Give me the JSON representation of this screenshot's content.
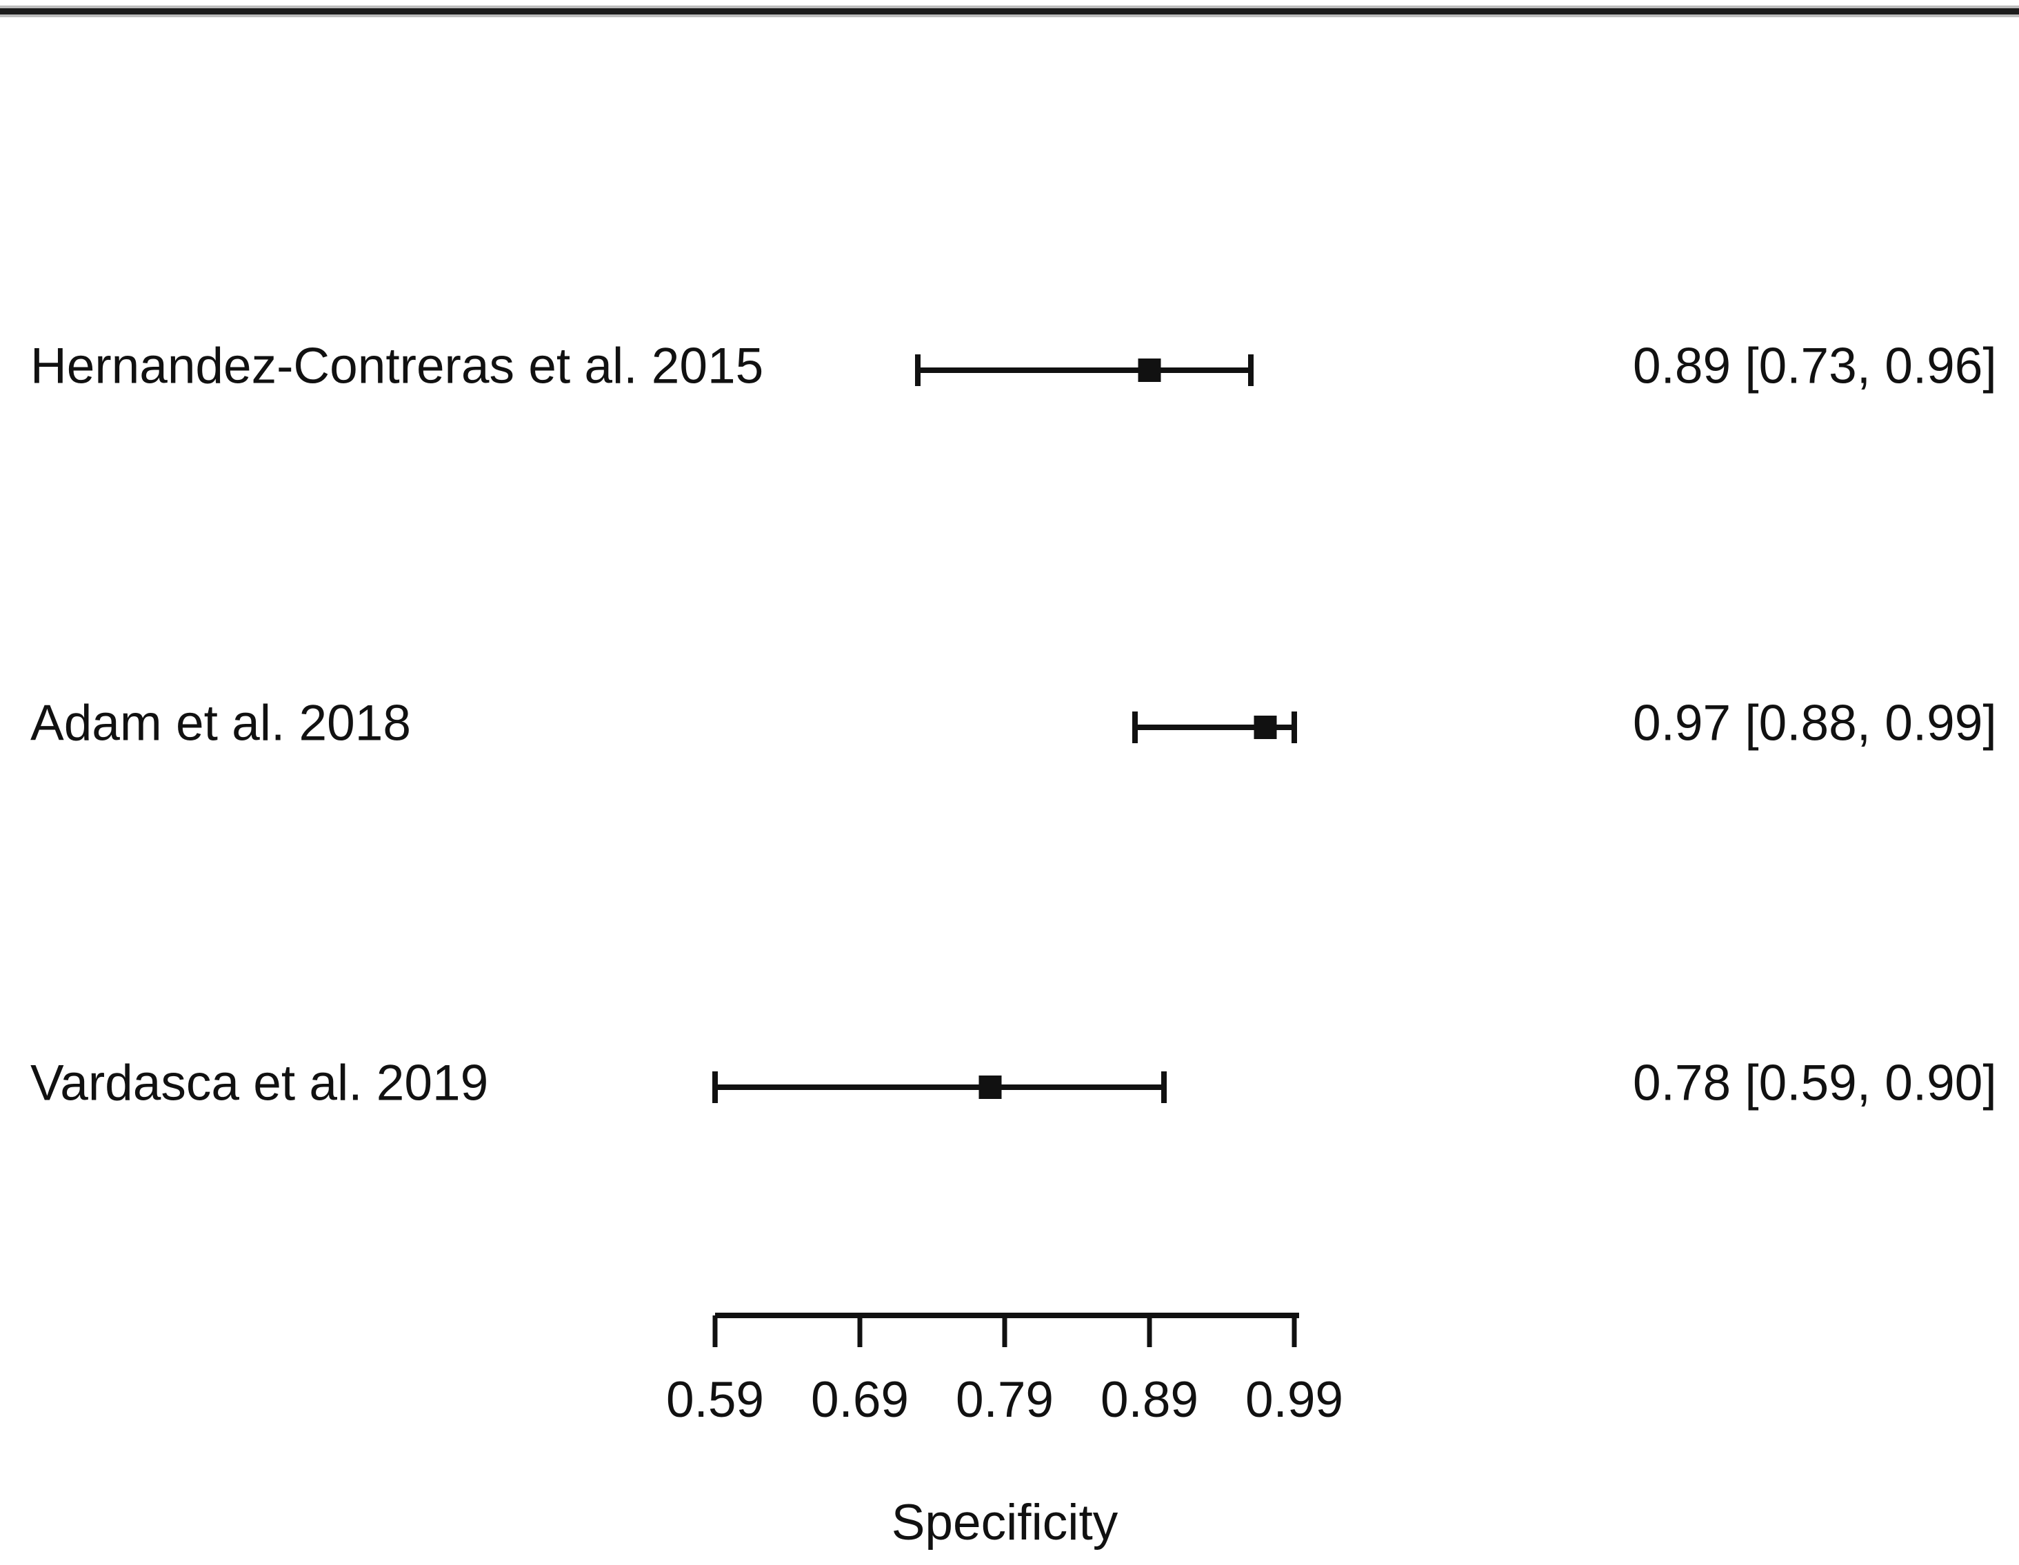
{
  "chart_data": {
    "type": "forest",
    "title": "",
    "xlabel": "Specificity",
    "xlim": [
      0.59,
      0.99
    ],
    "xticks": [
      0.59,
      0.69,
      0.79,
      0.89,
      0.99
    ],
    "xtick_labels": [
      "0.59",
      "0.69",
      "0.79",
      "0.89",
      "0.99"
    ],
    "grid": false,
    "legend": "none",
    "marker_shape": "filled-square",
    "colors": {
      "marker": "#111111",
      "line": "#111111",
      "text": "#111111",
      "background": "#ffffff"
    },
    "studies": [
      {
        "label": "Hernandez-Contreras et al. 2015",
        "estimate": 0.89,
        "ci_lower": 0.73,
        "ci_upper": 0.96,
        "value_text": "0.89 [0.73, 0.96]"
      },
      {
        "label": "Adam et al. 2018",
        "estimate": 0.97,
        "ci_lower": 0.88,
        "ci_upper": 0.99,
        "value_text": "0.97 [0.88, 0.99]"
      },
      {
        "label": "Vardasca et al. 2019",
        "estimate": 0.78,
        "ci_lower": 0.59,
        "ci_upper": 0.9,
        "value_text": "0.78 [0.59, 0.90]"
      }
    ]
  }
}
